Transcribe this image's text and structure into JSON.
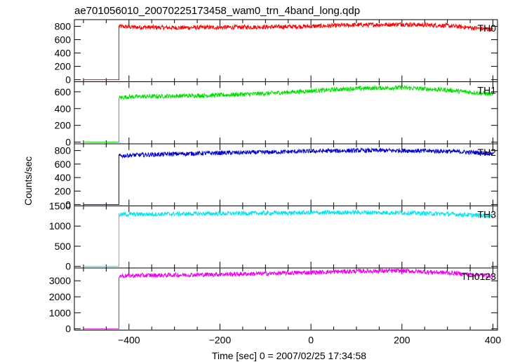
{
  "title": "ae701056010_20070225173458_wam0_trn_4band_long.qdp",
  "xlabel": "Time [sec] 0 = 2007/02/25 17:34:58",
  "ylabel": "Counts/sec",
  "chart_data": {
    "type": "line",
    "title": "ae701056010_20070225173458_wam0_trn_4band_long.qdp",
    "xlabel": "Time [sec] 0 = 2007/02/25 17:34:58",
    "ylabel": "Counts/sec",
    "xlim": [
      -520,
      410
    ],
    "x_ticks": [
      -400,
      -200,
      0,
      200,
      400
    ],
    "grid": false,
    "panels": [
      {
        "name": "TH0",
        "color": "#ff0000",
        "ylim": [
          -30,
          900
        ],
        "y_ticks": [
          0,
          200,
          400,
          600,
          800
        ],
        "pre_start": -500,
        "pre_level": 0,
        "step_x": -422,
        "series": {
          "x": [
            -422,
            -400,
            -300,
            -200,
            -100,
            0,
            100,
            200,
            300,
            400
          ],
          "y": [
            800,
            790,
            780,
            785,
            790,
            800,
            820,
            830,
            810,
            750
          ]
        }
      },
      {
        "name": "TH1",
        "color": "#00e000",
        "ylim": [
          -20,
          720
        ],
        "y_ticks": [
          0,
          200,
          400,
          600
        ],
        "pre_start": -500,
        "pre_level": 0,
        "step_x": -422,
        "series": {
          "x": [
            -422,
            -400,
            -300,
            -200,
            -100,
            0,
            100,
            200,
            300,
            400
          ],
          "y": [
            530,
            540,
            550,
            560,
            580,
            610,
            640,
            650,
            620,
            570
          ]
        }
      },
      {
        "name": "TH2",
        "color": "#0000cc",
        "ylim": [
          -20,
          900
        ],
        "y_ticks": [
          0,
          200,
          400,
          600,
          800
        ],
        "pre_start": -500,
        "pre_level": 0,
        "step_x": -422,
        "series": {
          "x": [
            -422,
            -400,
            -300,
            -200,
            -100,
            0,
            100,
            200,
            300,
            400
          ],
          "y": [
            720,
            730,
            750,
            765,
            775,
            790,
            800,
            800,
            790,
            760
          ]
        }
      },
      {
        "name": "TH3",
        "color": "#00e5ee",
        "ylim": [
          -40,
          1500
        ],
        "y_ticks": [
          0,
          500,
          1000,
          1500
        ],
        "pre_start": -500,
        "pre_level": 0,
        "step_x": -422,
        "series": {
          "x": [
            -422,
            -400,
            -300,
            -200,
            -100,
            0,
            100,
            200,
            300,
            400
          ],
          "y": [
            1280,
            1290,
            1300,
            1310,
            1320,
            1330,
            1340,
            1330,
            1300,
            1250
          ]
        }
      },
      {
        "name": "TH0123",
        "color": "#ee00ee",
        "ylim": [
          -80,
          3800
        ],
        "y_ticks": [
          0,
          1000,
          2000,
          3000
        ],
        "pre_start": -500,
        "pre_level": 0,
        "step_x": -422,
        "series": {
          "x": [
            -422,
            -400,
            -300,
            -200,
            -100,
            0,
            100,
            200,
            300,
            400
          ],
          "y": [
            3300,
            3320,
            3360,
            3400,
            3450,
            3520,
            3600,
            3620,
            3500,
            3300
          ]
        }
      }
    ]
  }
}
